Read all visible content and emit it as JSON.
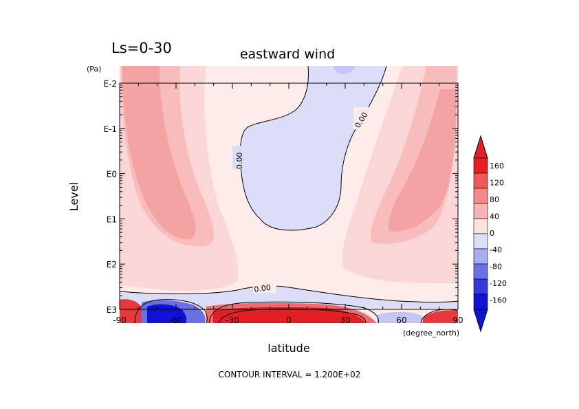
{
  "chart_data": {
    "type": "contour",
    "title": "eastward wind",
    "subtitle": "Ls=0-30",
    "xlabel": "latitude",
    "x_unit": "(degree_north)",
    "ylabel": "Level",
    "y_unit": "(Pa)",
    "xlim": [
      -90,
      90
    ],
    "x_ticks": [
      -90,
      -60,
      -30,
      0,
      30,
      60,
      90
    ],
    "y_ticks": [
      "E-2",
      "E-1",
      "E0",
      "E1",
      "E2",
      "E3"
    ],
    "y_scale": "log",
    "contour_labels": [
      "0.00",
      "0.00",
      "0.00"
    ],
    "colorbar_ticks": [
      160,
      120,
      80,
      40,
      0,
      -40,
      -80,
      -120,
      -160
    ],
    "footer": "CONTOUR INTERVAL = 1.200E+02"
  }
}
